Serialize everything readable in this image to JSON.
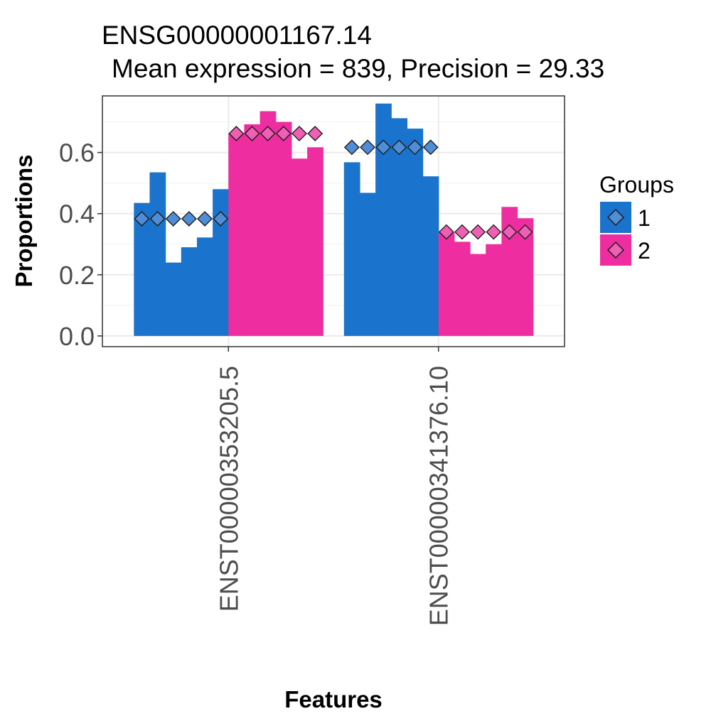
{
  "chart_data": {
    "type": "bar",
    "title": "ENSG00000001167.14",
    "subtitle": "Mean expression = 839, Precision = 29.33",
    "xlabel": "Features",
    "ylabel": "Proportions",
    "ylim": [
      -0.035,
      0.785
    ],
    "yticks": [
      0.0,
      0.2,
      0.4,
      0.6
    ],
    "ytick_labels": [
      "0.0",
      "0.2",
      "0.4",
      "0.6"
    ],
    "categories": [
      "ENST00000353205.5",
      "ENST00000341376.10"
    ],
    "grid": true,
    "legend": {
      "title": "Groups",
      "position": "right",
      "entries": [
        {
          "label": "1",
          "color": "#1a73cc",
          "marker_color": "#4f8ed6"
        },
        {
          "label": "2",
          "color": "#ee2ea0",
          "marker_color": "#ef5fb3"
        }
      ]
    },
    "series": [
      {
        "name": "1",
        "color": "#1a73cc",
        "marker_color": "#4f8ed6",
        "samples": [
          [
            0.435,
            0.535,
            0.24,
            0.29,
            0.322,
            0.48
          ],
          [
            0.568,
            0.468,
            0.76,
            0.712,
            0.678,
            0.522
          ]
        ],
        "mean": [
          0.383,
          0.617
        ]
      },
      {
        "name": "2",
        "color": "#ee2ea0",
        "marker_color": "#ef5fb3",
        "samples": [
          [
            0.662,
            0.692,
            0.735,
            0.7,
            0.58,
            0.617
          ],
          [
            0.338,
            0.308,
            0.268,
            0.3,
            0.422,
            0.385
          ]
        ],
        "mean": [
          0.662,
          0.34
        ]
      }
    ]
  }
}
